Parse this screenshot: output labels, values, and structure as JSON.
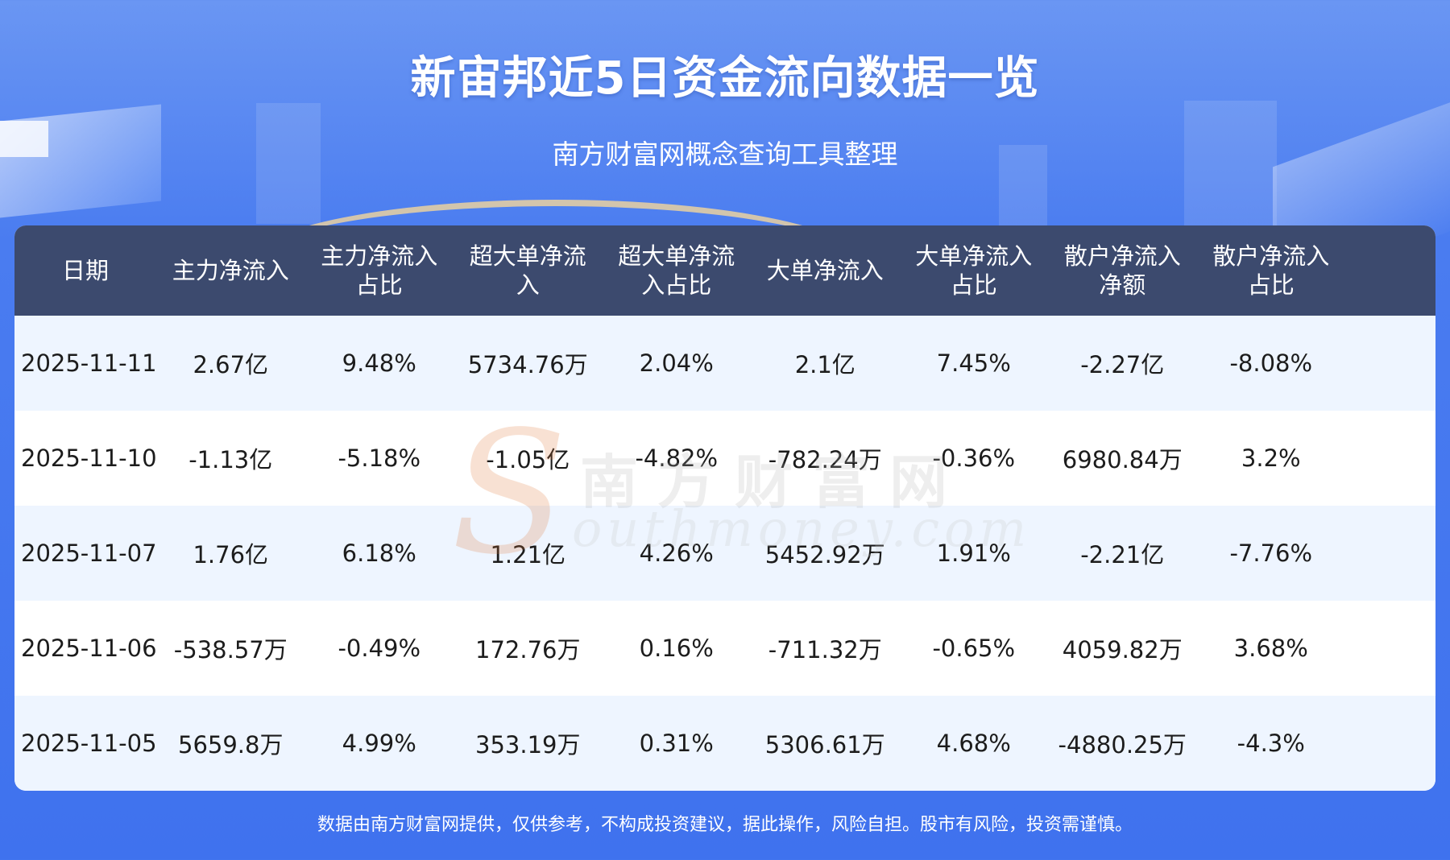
{
  "header": {
    "title": "新宙邦近5日资金流向数据一览",
    "subtitle": "南方财富网概念查询工具整理"
  },
  "table": {
    "columns": [
      "日期",
      "主力净流入",
      "主力净流入\n占比",
      "超大单净流\n入",
      "超大单净流\n入占比",
      "大单净流入",
      "大单净流入\n占比",
      "散户净流入\n净额",
      "散户净流入\n占比"
    ],
    "rows": [
      [
        "2025-11-11",
        "2.67亿",
        "9.48%",
        "5734.76万",
        "2.04%",
        "2.1亿",
        "7.45%",
        "-2.27亿",
        "-8.08%"
      ],
      [
        "2025-11-10",
        "-1.13亿",
        "-5.18%",
        "-1.05亿",
        "-4.82%",
        "-782.24万",
        "-0.36%",
        "6980.84万",
        "3.2%"
      ],
      [
        "2025-11-07",
        "1.76亿",
        "6.18%",
        "1.21亿",
        "4.26%",
        "5452.92万",
        "1.91%",
        "-2.21亿",
        "-7.76%"
      ],
      [
        "2025-11-06",
        "-538.57万",
        "-0.49%",
        "172.76万",
        "0.16%",
        "-711.32万",
        "-0.65%",
        "4059.82万",
        "3.68%"
      ],
      [
        "2025-11-05",
        "5659.8万",
        "4.99%",
        "353.19万",
        "0.31%",
        "5306.61万",
        "4.68%",
        "-4880.25万",
        "-4.3%"
      ]
    ]
  },
  "watermark": {
    "letter": "S",
    "cn": "南方财富网",
    "en": "outhmoney.com"
  },
  "footer": {
    "disclaimer": "数据由南方财富网提供，仅供参考，不构成投资建议，据此操作，风险自担。股市有风险，投资需谨慎。"
  }
}
